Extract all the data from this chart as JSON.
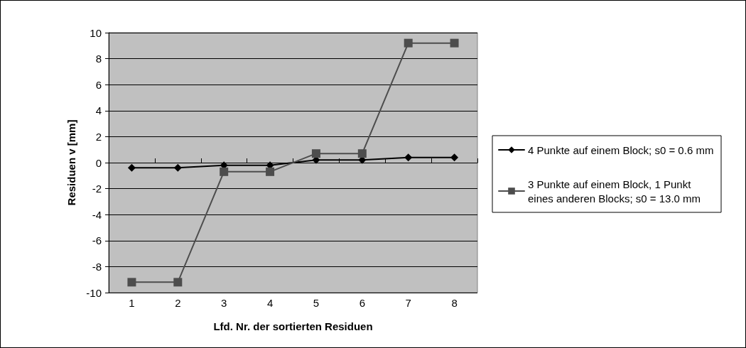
{
  "chart_data": {
    "type": "line",
    "xlabel": "Lfd. Nr. der sortierten Residuen",
    "ylabel": "Residuen v [mm]",
    "categories": [
      "1",
      "2",
      "3",
      "4",
      "5",
      "6",
      "7",
      "8"
    ],
    "ylim": [
      -10,
      10
    ],
    "yticks": [
      -10,
      -8,
      -6,
      -4,
      -2,
      0,
      2,
      4,
      6,
      8,
      10
    ],
    "grid": "y",
    "legend": "right",
    "line_style": "solid",
    "series": [
      {
        "name": "4 Punkte auf einem Block; s0 = 0.6 mm",
        "color": "#000000",
        "marker": "diamond",
        "values": [
          -0.4,
          -0.4,
          -0.2,
          -0.2,
          0.2,
          0.2,
          0.4,
          0.4
        ]
      },
      {
        "name": "3 Punkte auf einem Block, 1 Punkt eines anderen Blocks; s0 = 13.0 mm",
        "color": "#4d4d4d",
        "marker": "square",
        "values": [
          -9.2,
          -9.2,
          -0.7,
          -0.7,
          0.7,
          0.7,
          9.2,
          9.2
        ]
      }
    ]
  }
}
